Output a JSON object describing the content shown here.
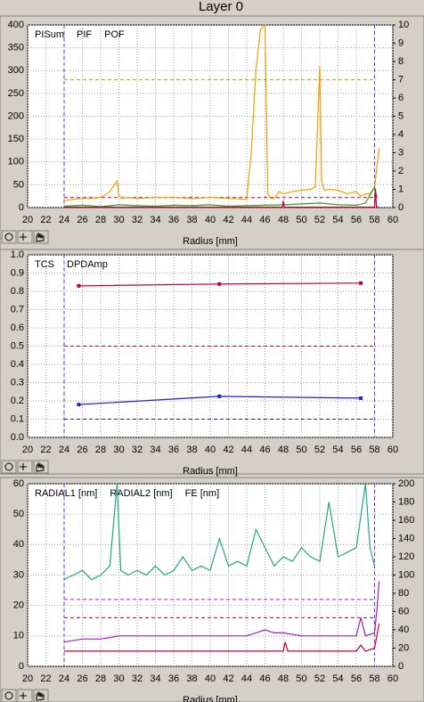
{
  "title": "Layer 0",
  "chart_data": [
    {
      "type": "line",
      "xlabel": "Radius [mm]",
      "xlim": [
        20,
        60
      ],
      "xticks": [
        20,
        22,
        24,
        26,
        28,
        30,
        32,
        34,
        36,
        38,
        40,
        42,
        44,
        46,
        48,
        50,
        52,
        54,
        56,
        58,
        60
      ],
      "ylim": [
        0,
        400
      ],
      "yticks": [
        0,
        50,
        100,
        150,
        200,
        250,
        300,
        350,
        400
      ],
      "y2lim": [
        0,
        10
      ],
      "y2ticks": [
        0,
        1,
        2,
        3,
        4,
        5,
        6,
        7,
        8,
        9,
        10
      ],
      "grid": true,
      "vlines": [
        24,
        58
      ],
      "vline_color": "#6a3cd8",
      "hlines": [
        {
          "value": 280,
          "color": "#e0a000"
        },
        {
          "value": 22,
          "color": "#c00030"
        }
      ],
      "series": [
        {
          "name": "PISum",
          "color": "#f0a000",
          "x": [
            24,
            25,
            26,
            27,
            28,
            29,
            29.5,
            29.8,
            30,
            30.5,
            31,
            32,
            34,
            36,
            38,
            40,
            42,
            44,
            44.5,
            45,
            45.5,
            46,
            46.3,
            46.6,
            47,
            47.5,
            48,
            49,
            50,
            51,
            51.5,
            52,
            52.2,
            52.5,
            53,
            54,
            55,
            56,
            56.5,
            57,
            57.5,
            58,
            58.2,
            58.5
          ],
          "values": [
            15,
            18,
            20,
            20,
            22,
            35,
            50,
            58,
            25,
            20,
            22,
            20,
            22,
            22,
            20,
            22,
            20,
            18,
            120,
            300,
            390,
            400,
            30,
            20,
            20,
            35,
            30,
            35,
            38,
            40,
            45,
            310,
            60,
            38,
            40,
            38,
            30,
            35,
            25,
            30,
            30,
            45,
            80,
            130
          ]
        },
        {
          "name": "PIF",
          "color": "#30a020",
          "x": [
            24,
            26,
            28,
            30,
            32,
            34,
            36,
            38,
            40,
            42,
            44,
            46,
            48,
            50,
            52,
            54,
            56,
            57,
            58,
            58.3
          ],
          "values": [
            3,
            5,
            2,
            6,
            4,
            3,
            5,
            4,
            6,
            3,
            4,
            5,
            6,
            8,
            10,
            6,
            5,
            10,
            45,
            20
          ]
        },
        {
          "name": "POF",
          "color": "#c00030",
          "x": [
            24,
            30,
            40,
            47.9,
            48,
            48.1,
            50,
            56,
            58,
            58.1,
            58.2,
            58.4
          ],
          "values": [
            1,
            1,
            1,
            1,
            15,
            1,
            1,
            1,
            1,
            40,
            2,
            1
          ]
        }
      ]
    },
    {
      "type": "line",
      "xlabel": "Radius [mm]",
      "xlim": [
        20,
        60
      ],
      "xticks": [
        20,
        22,
        24,
        26,
        28,
        30,
        32,
        34,
        36,
        38,
        40,
        42,
        44,
        46,
        48,
        50,
        52,
        54,
        56,
        58,
        60
      ],
      "ylim": [
        0,
        1
      ],
      "yticks": [
        {
          "value": 0,
          "label": "0.0"
        },
        0.1,
        0.2,
        0.3,
        0.4,
        0.5,
        0.6,
        0.7,
        0.8,
        0.9,
        {
          "value": 1,
          "label": "1.0"
        }
      ],
      "grid": true,
      "vlines": [
        24,
        58
      ],
      "vline_color": "#6a3cd8",
      "hlines": [
        {
          "value": 0.5,
          "color": "#c00030"
        },
        {
          "value": 0.1,
          "color": "#2020d0"
        }
      ],
      "series": [
        {
          "name": "TCS",
          "color": "#2020d0",
          "markers": true,
          "x": [
            25.6,
            41,
            56.5
          ],
          "values": [
            0.18,
            0.225,
            0.215
          ]
        },
        {
          "name": "DPDAmp",
          "color": "#c00030",
          "markers": true,
          "x": [
            25.6,
            41,
            56.5
          ],
          "values": [
            0.83,
            0.84,
            0.845
          ]
        }
      ]
    },
    {
      "type": "line",
      "xlabel": "Radius [mm]",
      "xlim": [
        20,
        60
      ],
      "xticks": [
        20,
        22,
        24,
        26,
        28,
        30,
        32,
        34,
        36,
        38,
        40,
        42,
        44,
        46,
        48,
        50,
        52,
        54,
        56,
        58,
        60
      ],
      "ylim": [
        0,
        60
      ],
      "yticks": [
        0,
        10,
        20,
        30,
        40,
        50,
        60
      ],
      "y2lim": [
        0,
        200
      ],
      "y2ticks": [
        0,
        20,
        40,
        60,
        80,
        100,
        120,
        140,
        160,
        180,
        200
      ],
      "grid": true,
      "vlines": [
        24,
        58
      ],
      "vline_color": "#6a3cd8",
      "hlines": [
        {
          "value": 22,
          "color": "#a020c0"
        },
        {
          "value": 16,
          "color": "#c00030"
        }
      ],
      "series": [
        {
          "name": "RADIAL1 [nm]",
          "color": "#a020c0",
          "x": [
            24,
            26,
            28,
            30,
            32,
            34,
            36,
            38,
            40,
            42,
            44,
            45,
            46,
            47,
            48,
            50,
            52,
            54,
            56,
            56.5,
            57,
            58,
            58.3,
            58.5
          ],
          "values": [
            8,
            9,
            9,
            10,
            10,
            10,
            10,
            10,
            10,
            10,
            10,
            11,
            12,
            11,
            11,
            10,
            10,
            10,
            10,
            16,
            10,
            11,
            20,
            28
          ]
        },
        {
          "name": "RADIAL2 [nm]",
          "color": "#c00030",
          "x": [
            24,
            28,
            32,
            36,
            40,
            44,
            48,
            48.2,
            48.5,
            52,
            56,
            56.5,
            57,
            58,
            58.5
          ],
          "values": [
            5,
            5,
            5,
            5,
            5,
            5,
            5,
            8,
            5,
            5,
            5,
            7,
            5,
            6,
            14
          ]
        },
        {
          "name": "FE [nm]",
          "color": "#20a880",
          "axis": "y2",
          "x": [
            24,
            25,
            26,
            27,
            28,
            29,
            29.8,
            30.2,
            31,
            32,
            33,
            34,
            35,
            36,
            37,
            38,
            39,
            40,
            41,
            42,
            43,
            44,
            45,
            46,
            47,
            48,
            49,
            50,
            51,
            52,
            53,
            54,
            55,
            56,
            57,
            57.5,
            58
          ],
          "values": [
            95,
            100,
            105,
            95,
            100,
            110,
            200,
            105,
            100,
            105,
            100,
            110,
            100,
            105,
            120,
            105,
            110,
            105,
            140,
            110,
            115,
            110,
            150,
            130,
            110,
            120,
            115,
            130,
            120,
            115,
            180,
            120,
            125,
            130,
            200,
            130,
            110
          ]
        }
      ]
    }
  ]
}
